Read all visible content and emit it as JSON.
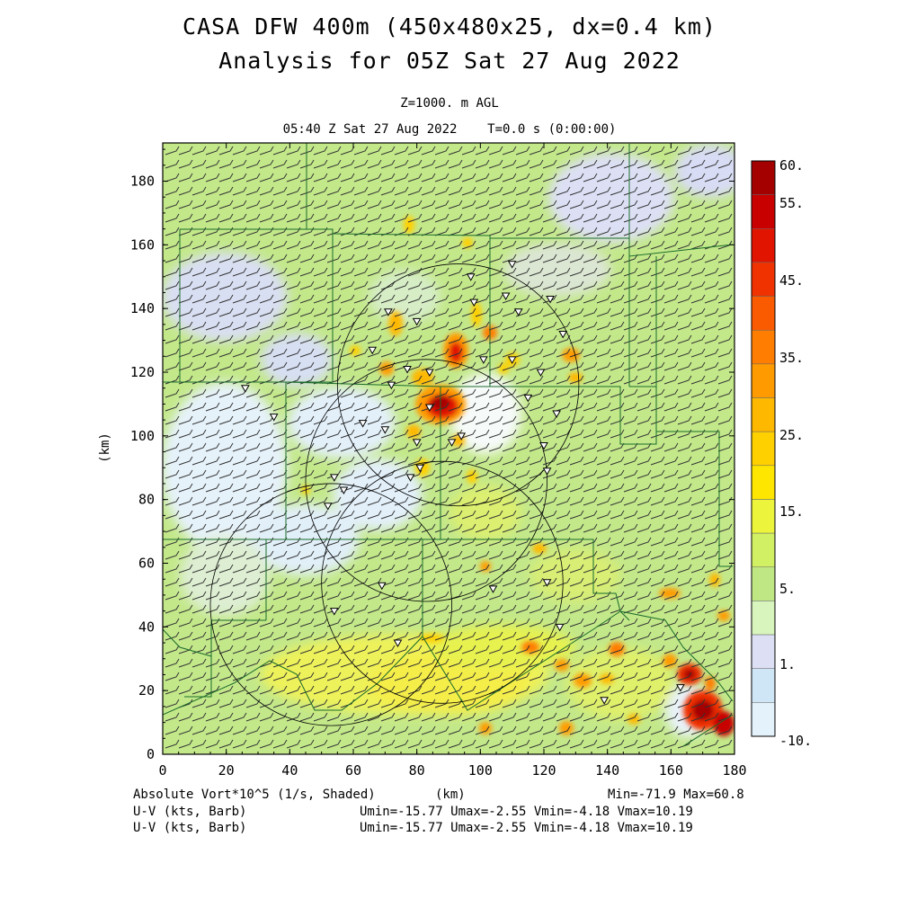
{
  "header": {
    "title_line1": "CASA DFW 400m (450x480x25, dx=0.4 km)",
    "title_line2": "Analysis for 05Z Sat 27 Aug 2022",
    "level": "Z=1000. m AGL",
    "valid_time": "05:40 Z Sat 27 Aug 2022    T=0.0 s (0:00:00)"
  },
  "axes": {
    "x_label": "(km)",
    "y_label": "(km)",
    "x_ticks": [
      "0",
      "20",
      "40",
      "60",
      "80",
      "100",
      "120",
      "140",
      "160",
      "180"
    ],
    "y_ticks": [
      "0",
      "20",
      "40",
      "60",
      "80",
      "100",
      "120",
      "140",
      "160",
      "180"
    ],
    "x_range": [
      0,
      180
    ],
    "y_range": [
      0,
      192
    ]
  },
  "colorbar": {
    "labels": [
      "60.",
      "55.",
      "45.",
      "35.",
      "25.",
      "15.",
      "5.",
      "1.",
      "-10."
    ],
    "colors": [
      "#a50000",
      "#c80000",
      "#e11400",
      "#f03200",
      "#fa5a00",
      "#ff7d00",
      "#ff9b00",
      "#ffb800",
      "#ffd000",
      "#ffe600",
      "#ecf53c",
      "#d2f064",
      "#bfe885",
      "#d7f5bd",
      "#dde0f5",
      "#cfe6f7",
      "#e3f2fb"
    ]
  },
  "footer": {
    "field": "Absolute Vort*10^5 (1/s, Shaded)",
    "x_unit": "(km)",
    "minmax": "Min=-71.9 Max=60.8",
    "wind1_label": "U-V (kts, Barb)",
    "wind1_stats": "Umin=-15.77 Umax=-2.55 Vmin=-4.18 Vmax=10.19",
    "wind2_label": "U-V (kts, Barb)",
    "wind2_stats": "Umin=-15.77 Umax=-2.55 Vmin=-4.18 Vmax=10.19"
  },
  "radars": [
    {
      "x": 93,
      "y": 116,
      "r": 38
    },
    {
      "x": 83,
      "y": 86,
      "r": 38
    },
    {
      "x": 88,
      "y": 54,
      "r": 38
    },
    {
      "x": 53,
      "y": 47,
      "r": 38
    }
  ],
  "stations": [
    [
      110,
      154
    ],
    [
      97,
      150
    ],
    [
      108,
      144
    ],
    [
      122,
      143
    ],
    [
      98,
      142
    ],
    [
      112,
      139
    ],
    [
      71,
      139
    ],
    [
      80,
      136
    ],
    [
      126,
      132
    ],
    [
      66,
      127
    ],
    [
      77,
      121
    ],
    [
      84,
      120
    ],
    [
      101,
      124
    ],
    [
      110,
      124
    ],
    [
      119,
      120
    ],
    [
      115,
      112
    ],
    [
      26,
      115
    ],
    [
      72,
      116
    ],
    [
      84,
      109
    ],
    [
      124,
      107
    ],
    [
      35,
      106
    ],
    [
      63,
      104
    ],
    [
      70,
      102
    ],
    [
      80,
      98
    ],
    [
      91,
      98
    ],
    [
      94,
      100
    ],
    [
      120,
      97
    ],
    [
      81,
      90
    ],
    [
      78,
      87
    ],
    [
      121,
      89
    ],
    [
      54,
      87
    ],
    [
      57,
      83
    ],
    [
      52,
      78
    ],
    [
      69,
      53
    ],
    [
      104,
      52
    ],
    [
      121,
      54
    ],
    [
      54,
      45
    ],
    [
      125,
      40
    ],
    [
      74,
      35
    ],
    [
      139,
      17
    ],
    [
      163,
      21
    ]
  ]
}
